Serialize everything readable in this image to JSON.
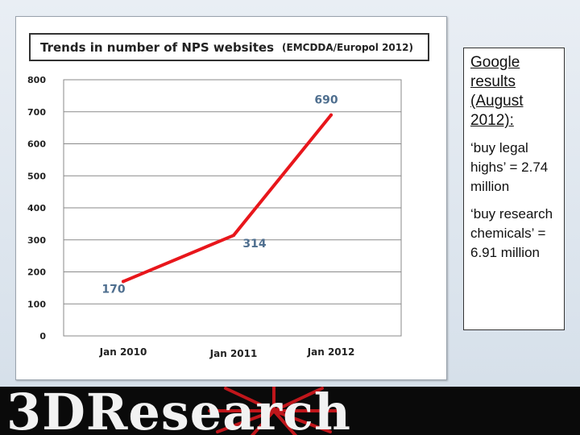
{
  "chart_data": {
    "type": "line",
    "title": "Trends in number of NPS websites",
    "subtitle": "(EMCDDA/Europol 2012)",
    "categories": [
      "Jan 2010",
      "Jan 2011",
      "Jan 2012"
    ],
    "values": [
      170,
      314,
      690
    ],
    "data_labels": [
      "170",
      "314",
      "690"
    ],
    "yticks": [
      "0",
      "100",
      "200",
      "300",
      "400",
      "500",
      "600",
      "700",
      "800"
    ],
    "ylim": [
      0,
      800
    ],
    "xlabel": "",
    "ylabel": "",
    "grid": true,
    "legend": false,
    "line_color": "#e8161b",
    "label_color": "#4f6f8f"
  },
  "textbox": {
    "heading": "Google results (August 2012):",
    "items": [
      "‘buy legal highs’ = 2.74 million",
      "‘buy research chemicals’ = 6.91 million"
    ]
  },
  "footer": {
    "logo": "3DResearch",
    "logo_color": "#f2f2f2",
    "mark_color": "#c0161b",
    "background": "#0a0a0a"
  }
}
